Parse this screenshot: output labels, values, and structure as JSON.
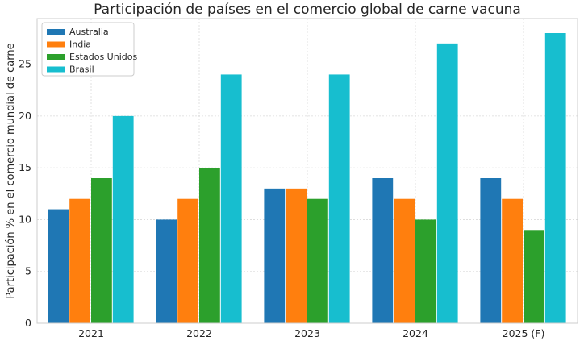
{
  "chart_data": {
    "type": "bar",
    "title": "Participación de países en el comercio global de carne vacuna",
    "xlabel": "",
    "ylabel": "Participación % en el comercio mundial de carne",
    "categories": [
      "2021",
      "2022",
      "2023",
      "2024",
      "2025 (F)"
    ],
    "ylim": [
      0,
      29.4
    ],
    "yticks": [
      0,
      5,
      10,
      15,
      20,
      25
    ],
    "grid": true,
    "legend_position": "top-left",
    "series": [
      {
        "name": "Australia",
        "color": "#1f77b4",
        "values": [
          11,
          10,
          13,
          14,
          14
        ]
      },
      {
        "name": "India",
        "color": "#ff7f0e",
        "values": [
          12,
          12,
          13,
          12,
          12
        ]
      },
      {
        "name": "Estados Unidos",
        "color": "#2ca02c",
        "values": [
          14,
          15,
          12,
          10,
          9
        ]
      },
      {
        "name": "Brasil",
        "color": "#17becf",
        "values": [
          20,
          24,
          24,
          27,
          28
        ]
      }
    ]
  }
}
